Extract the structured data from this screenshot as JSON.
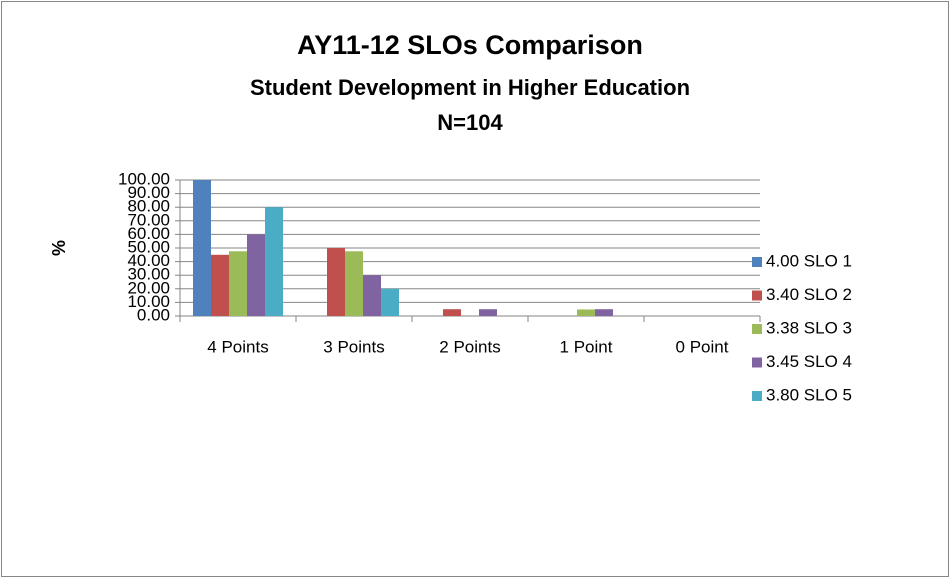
{
  "chart_data": {
    "type": "bar",
    "title": "AY11-12 SLOs Comparison",
    "subtitle": [
      "Student Development in Higher Education",
      "N=104"
    ],
    "y_label": "%",
    "categories": [
      "4 Points",
      "3 Points",
      "2 Points",
      "1 Point",
      "0 Point"
    ],
    "series": [
      {
        "name": "4.00 SLO 1",
        "color": "#4f81bd",
        "values": [
          100,
          0,
          0,
          0,
          0
        ]
      },
      {
        "name": "3.40 SLO 2",
        "color": "#c0504d",
        "values": [
          45,
          50,
          5,
          0,
          0
        ]
      },
      {
        "name": "3.38 SLO 3",
        "color": "#9bbb59",
        "values": [
          47.6,
          47.6,
          0,
          4.8,
          0
        ]
      },
      {
        "name": "3.45 SLO 4",
        "color": "#8064a2",
        "values": [
          60,
          30,
          5,
          5,
          0
        ]
      },
      {
        "name": "3.80 SLO 5",
        "color": "#4bacc6",
        "values": [
          80,
          20,
          0,
          0,
          0
        ]
      }
    ],
    "ylim": [
      0,
      100
    ],
    "yticks": [
      {
        "value": 0,
        "label": "0.00"
      },
      {
        "value": 10,
        "label": "10.00"
      },
      {
        "value": 20,
        "label": "20.00"
      },
      {
        "value": 30,
        "label": "30.00"
      },
      {
        "value": 40,
        "label": "40.00"
      },
      {
        "value": 50,
        "label": "50.00"
      },
      {
        "value": 60,
        "label": "60.00"
      },
      {
        "value": 70,
        "label": "70.00"
      },
      {
        "value": 80,
        "label": "80.00"
      },
      {
        "value": 90,
        "label": "90.00"
      },
      {
        "value": 100,
        "label": "100.00"
      }
    ],
    "grid": true,
    "legend": "right"
  }
}
